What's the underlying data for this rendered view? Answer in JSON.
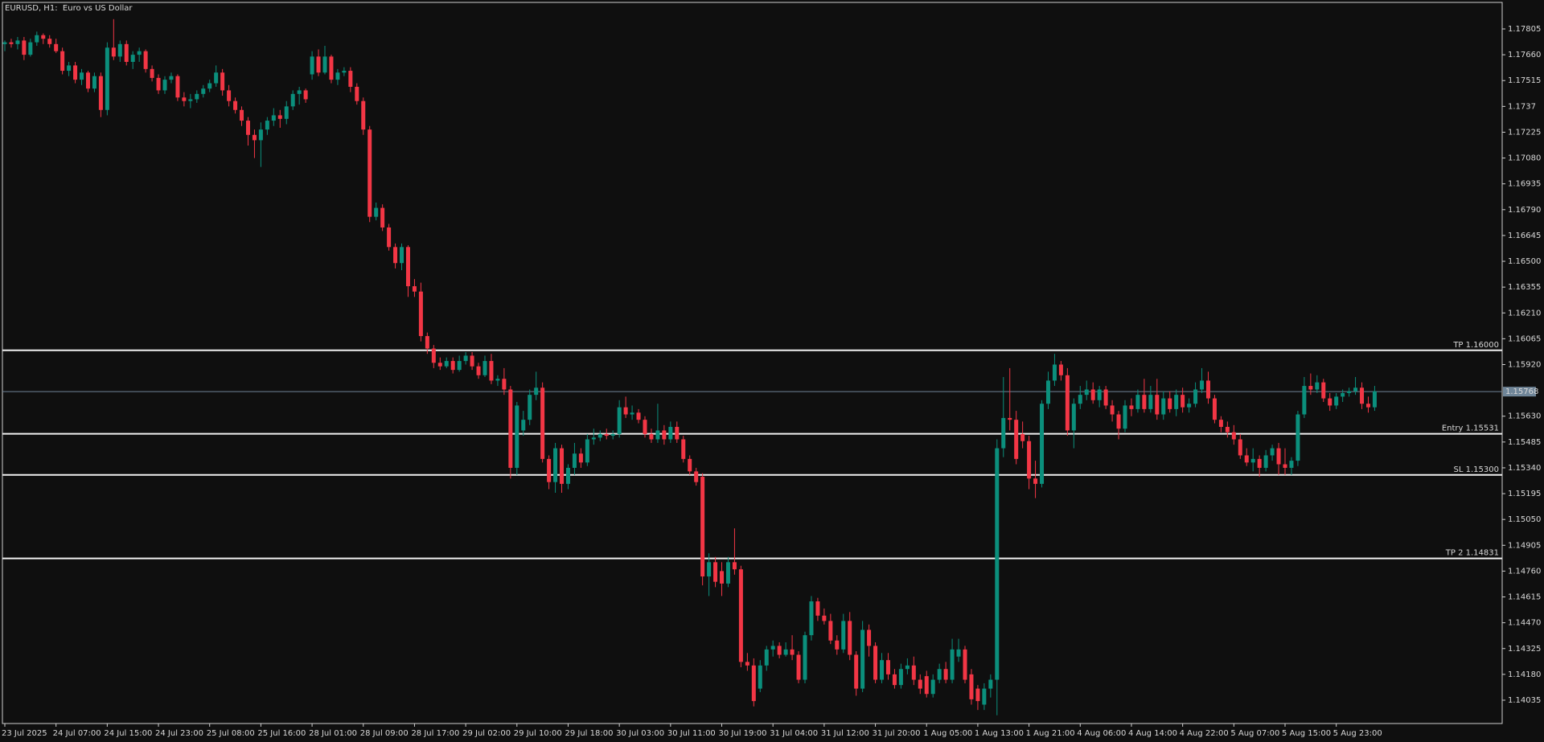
{
  "chart_data": {
    "type": "candlestick",
    "title": "EURUSD, H1:  Euro vs US Dollar",
    "up_color": "#0b8f7c",
    "down_color": "#f23645",
    "categories": [
      "23 Jul 2025",
      null,
      null,
      null,
      null,
      null,
      null,
      null,
      "24 Jul 07:00",
      null,
      null,
      null,
      null,
      null,
      null,
      null,
      "24 Jul 15:00",
      null,
      null,
      null,
      null,
      null,
      null,
      null,
      "24 Jul 23:00",
      null,
      null,
      null,
      null,
      null,
      null,
      null,
      "25 Jul 08:00",
      null,
      null,
      null,
      null,
      null,
      null,
      null,
      "25 Jul 16:00",
      null,
      null,
      null,
      null,
      null,
      null,
      null,
      "28 Jul 01:00",
      null,
      null,
      null,
      null,
      null,
      null,
      null,
      "28 Jul 09:00",
      null,
      null,
      null,
      null,
      null,
      null,
      null,
      "28 Jul 17:00",
      null,
      null,
      null,
      null,
      null,
      null,
      null,
      "29 Jul 02:00",
      null,
      null,
      null,
      null,
      null,
      null,
      null,
      "29 Jul 10:00",
      null,
      null,
      null,
      null,
      null,
      null,
      null,
      "29 Jul 18:00",
      null,
      null,
      null,
      null,
      null,
      null,
      null,
      "30 Jul 03:00",
      null,
      null,
      null,
      null,
      null,
      null,
      null,
      "30 Jul 11:00",
      null,
      null,
      null,
      null,
      null,
      null,
      null,
      "30 Jul 19:00",
      null,
      null,
      null,
      null,
      null,
      null,
      null,
      "31 Jul 04:00",
      null,
      null,
      null,
      null,
      null,
      null,
      null,
      "31 Jul 12:00",
      null,
      null,
      null,
      null,
      null,
      null,
      null,
      "31 Jul 20:00",
      null,
      null,
      null,
      null,
      null,
      null,
      null,
      "1 Aug 05:00",
      null,
      null,
      null,
      null,
      null,
      null,
      null,
      "1 Aug 13:00",
      null,
      null,
      null,
      null,
      null,
      null,
      null,
      "1 Aug 21:00",
      null,
      null,
      null,
      null,
      null,
      null,
      null,
      "4 Aug 06:00",
      null,
      null,
      null,
      null,
      null,
      null,
      null,
      "4 Aug 14:00",
      null,
      null,
      null,
      null,
      null,
      null,
      null,
      "4 Aug 22:00",
      null,
      null,
      null,
      null,
      null,
      null,
      null,
      "5 Aug 07:00",
      null,
      null,
      null,
      null,
      null,
      null,
      null,
      "5 Aug 15:00",
      null,
      null,
      null,
      null,
      null,
      null,
      null,
      "5 Aug 23:00",
      null,
      null,
      null,
      null,
      null,
      null
    ],
    "open": [
      1.1772,
      1.1773,
      1.1772,
      1.1774,
      1.1766,
      1.1773,
      1.1777,
      1.1775,
      1.1772,
      1.1768,
      1.1757,
      1.176,
      1.1752,
      1.1756,
      1.1747,
      1.1754,
      1.1735,
      1.177,
      1.1765,
      1.1772,
      1.1762,
      1.1766,
      1.1768,
      1.1758,
      1.1753,
      1.1746,
      1.1752,
      1.1754,
      1.1742,
      1.174,
      1.1741,
      1.1744,
      1.1747,
      1.175,
      1.1756,
      1.1746,
      1.174,
      1.1735,
      1.1729,
      1.1721,
      1.1718,
      1.1724,
      1.1729,
      1.1732,
      1.173,
      1.1737,
      1.1744,
      1.1746,
      1.1755,
      1.1765,
      1.1756,
      1.1765,
      1.1752,
      1.1756,
      1.1757,
      1.1748,
      1.174,
      1.1724,
      1.1675,
      1.168,
      1.1669,
      1.1658,
      1.1649,
      1.1658,
      1.1636,
      1.1633,
      1.1608,
      1.1601,
      1.1593,
      1.1591,
      1.1594,
      1.1589,
      1.1594,
      1.1597,
      1.1591,
      1.1586,
      1.1594,
      1.1583,
      1.1584,
      1.1578,
      1.1534,
      1.1555,
      1.1561,
      1.1575,
      1.1579,
      1.1539,
      1.1526,
      1.1545,
      1.1525,
      1.1534,
      1.1542,
      1.1537,
      1.155,
      1.1551,
      1.1553,
      1.1552,
      1.1553,
      1.1568,
      1.1564,
      1.1565,
      1.1561,
      1.1553,
      1.155,
      1.1555,
      1.155,
      1.1557,
      1.155,
      1.1539,
      1.1532,
      1.1529,
      1.1473,
      1.1481,
      1.1476,
      1.1469,
      1.1481,
      1.1477,
      1.1425,
      1.1423,
      1.141,
      1.1423,
      1.1432,
      1.1434,
      1.1429,
      1.1432,
      1.1429,
      1.1415,
      1.144,
      1.1459,
      1.1451,
      1.1448,
      1.1437,
      1.1432,
      1.1448,
      1.1429,
      1.141,
      1.1443,
      1.1434,
      1.1415,
      1.1426,
      1.1418,
      1.1412,
      1.1421,
      1.1423,
      1.1415,
      1.1417,
      1.1407,
      1.1415,
      1.1421,
      1.1415,
      1.1428,
      1.1432,
      1.1418,
      1.141,
      1.1401,
      1.141,
      1.1415,
      1.1545,
      1.1562,
      1.1561,
      1.1553,
      1.1549,
      1.1528,
      1.1525,
      1.157,
      1.1583,
      1.1592,
      1.1586,
      1.1555,
      1.157,
      1.1575,
      1.1578,
      1.1572,
      1.1578,
      1.1569,
      1.1564,
      1.1556,
      1.1569,
      1.1567,
      1.1575,
      1.1567,
      1.1575,
      1.1564,
      1.1573,
      1.1567,
      1.1575,
      1.1568,
      1.157,
      1.1578,
      1.1583,
      1.1573,
      1.1561,
      1.1557,
      1.1554,
      1.155,
      1.1541,
      1.1537,
      1.1539,
      1.1534,
      1.1541,
      1.1545,
      1.1536,
      1.1534,
      1.1538,
      1.1564,
      1.158,
      1.1578,
      1.1582,
      1.1573,
      1.1569,
      1.1574,
      1.1576,
      1.1577,
      1.1579,
      1.157,
      1.1568
    ],
    "high": [
      1.1774,
      1.1775,
      1.1776,
      1.1776,
      1.1775,
      1.1779,
      1.1778,
      1.1777,
      1.1775,
      1.177,
      1.1762,
      1.1762,
      1.1758,
      1.1757,
      1.1756,
      1.1756,
      1.1773,
      1.1786,
      1.1774,
      1.1774,
      1.1768,
      1.177,
      1.1769,
      1.176,
      1.1755,
      1.1754,
      1.1756,
      1.1755,
      1.1745,
      1.1744,
      1.1746,
      1.1749,
      1.1752,
      1.176,
      1.1758,
      1.1749,
      1.1742,
      1.1737,
      1.1731,
      1.1724,
      1.1728,
      1.1731,
      1.1736,
      1.1735,
      1.174,
      1.1746,
      1.1748,
      1.1747,
      1.1768,
      1.1769,
      1.1771,
      1.1766,
      1.1758,
      1.1759,
      1.1759,
      1.175,
      1.1742,
      1.1726,
      1.1683,
      1.1682,
      1.1671,
      1.166,
      1.166,
      1.1659,
      1.164,
      1.1638,
      1.161,
      1.1603,
      1.1596,
      1.1596,
      1.1596,
      1.1597,
      1.1599,
      1.1599,
      1.1593,
      1.1597,
      1.1598,
      1.1586,
      1.159,
      1.158,
      1.1571,
      1.1566,
      1.1578,
      1.1588,
      1.1582,
      1.1541,
      1.1548,
      1.1547,
      1.1536,
      1.1548,
      1.1545,
      1.1553,
      1.1556,
      1.1555,
      1.1556,
      1.1555,
      1.1572,
      1.1574,
      1.1569,
      1.1567,
      1.1563,
      1.1556,
      1.157,
      1.1558,
      1.156,
      1.156,
      1.1552,
      1.1541,
      1.1534,
      1.1531,
      1.1486,
      1.1484,
      1.1481,
      1.1484,
      1.15,
      1.1479,
      1.143,
      1.1427,
      1.1426,
      1.1434,
      1.1437,
      1.1436,
      1.1436,
      1.144,
      1.1431,
      1.1442,
      1.1462,
      1.1461,
      1.1455,
      1.1452,
      1.144,
      1.1452,
      1.1453,
      1.1431,
      1.1448,
      1.1446,
      1.1436,
      1.143,
      1.143,
      1.1421,
      1.1424,
      1.1427,
      1.1428,
      1.1418,
      1.142,
      1.1418,
      1.1424,
      1.1425,
      1.1438,
      1.1438,
      1.1434,
      1.1421,
      1.1412,
      1.1413,
      1.1418,
      1.155,
      1.1585,
      1.159,
      1.1566,
      1.156,
      1.1552,
      1.1538,
      1.1572,
      1.1588,
      1.1598,
      1.1594,
      1.159,
      1.1573,
      1.158,
      1.1583,
      1.1582,
      1.158,
      1.158,
      1.1572,
      1.1566,
      1.1572,
      1.1573,
      1.1578,
      1.1584,
      1.158,
      1.1584,
      1.1577,
      1.1577,
      1.1578,
      1.1579,
      1.1573,
      1.1582,
      1.159,
      1.1588,
      1.1575,
      1.1563,
      1.156,
      1.1558,
      1.1553,
      1.1545,
      1.1545,
      1.1541,
      1.1544,
      1.1547,
      1.1548,
      1.1545,
      1.154,
      1.1566,
      1.1585,
      1.1587,
      1.1586,
      1.1584,
      1.1576,
      1.1576,
      1.1578,
      1.1579,
      1.1585,
      1.1582,
      1.1574,
      1.158
    ],
    "low": [
      1.1768,
      1.177,
      1.1769,
      1.1763,
      1.1765,
      1.1771,
      1.1772,
      1.177,
      1.1767,
      1.1755,
      1.1754,
      1.175,
      1.1749,
      1.1745,
      1.1745,
      1.1731,
      1.1732,
      1.1763,
      1.1762,
      1.176,
      1.1758,
      1.1762,
      1.1756,
      1.1751,
      1.1744,
      1.1744,
      1.175,
      1.174,
      1.1737,
      1.1736,
      1.1739,
      1.1742,
      1.1745,
      1.1748,
      1.1743,
      1.1737,
      1.1733,
      1.1726,
      1.1715,
      1.1708,
      1.1703,
      1.1721,
      1.1726,
      1.1725,
      1.1727,
      1.1735,
      1.1738,
      1.1739,
      1.1752,
      1.1754,
      1.1755,
      1.175,
      1.1749,
      1.1754,
      1.1745,
      1.1738,
      1.1721,
      1.1672,
      1.1673,
      1.1667,
      1.1656,
      1.1646,
      1.1645,
      1.163,
      1.163,
      1.1605,
      1.1598,
      1.159,
      1.1589,
      1.159,
      1.1587,
      1.1588,
      1.1592,
      1.1589,
      1.1584,
      1.1585,
      1.1581,
      1.158,
      1.1575,
      1.1528,
      1.153,
      1.1552,
      1.1558,
      1.1572,
      1.1537,
      1.1522,
      1.152,
      1.152,
      1.1522,
      1.153,
      1.1534,
      1.1535,
      1.1547,
      1.1549,
      1.155,
      1.155,
      1.1551,
      1.1562,
      1.1561,
      1.1559,
      1.1551,
      1.1548,
      1.1548,
      1.1547,
      1.1548,
      1.1548,
      1.1537,
      1.153,
      1.1524,
      1.1468,
      1.1462,
      1.1467,
      1.1462,
      1.1467,
      1.1474,
      1.1422,
      1.142,
      1.14,
      1.1408,
      1.142,
      1.1428,
      1.1427,
      1.1428,
      1.1426,
      1.1413,
      1.1413,
      1.1437,
      1.1448,
      1.1446,
      1.1435,
      1.1429,
      1.143,
      1.1426,
      1.1406,
      1.1408,
      1.1428,
      1.1413,
      1.1413,
      1.1415,
      1.141,
      1.141,
      1.1418,
      1.1412,
      1.1407,
      1.1405,
      1.1405,
      1.1413,
      1.1413,
      1.1413,
      1.1425,
      1.1413,
      1.1401,
      1.1398,
      1.1398,
      1.1405,
      1.1395,
      1.154,
      1.1555,
      1.1536,
      1.1545,
      1.1522,
      1.1517,
      1.1523,
      1.1567,
      1.158,
      1.1583,
      1.1552,
      1.1545,
      1.1567,
      1.1572,
      1.157,
      1.1568,
      1.1567,
      1.156,
      1.155,
      1.1554,
      1.1563,
      1.1565,
      1.1565,
      1.1565,
      1.1561,
      1.1561,
      1.1565,
      1.1563,
      1.1565,
      1.1565,
      1.1568,
      1.1576,
      1.157,
      1.1559,
      1.1554,
      1.1551,
      1.1547,
      1.1539,
      1.1535,
      1.1532,
      1.1529,
      1.1532,
      1.1538,
      1.153,
      1.153,
      1.153,
      1.1535,
      1.1562,
      1.1575,
      1.1576,
      1.1571,
      1.1566,
      1.1567,
      1.1571,
      1.1574,
      1.1575,
      1.1567,
      1.1565,
      1.1566
    ],
    "close": [
      1.1773,
      1.1772,
      1.1774,
      1.1766,
      1.1773,
      1.1777,
      1.1775,
      1.1772,
      1.1768,
      1.1757,
      1.176,
      1.1752,
      1.1756,
      1.1747,
      1.1754,
      1.1735,
      1.177,
      1.1765,
      1.1772,
      1.1762,
      1.1766,
      1.1768,
      1.1758,
      1.1753,
      1.1746,
      1.1752,
      1.1754,
      1.1742,
      1.174,
      1.1741,
      1.1744,
      1.1747,
      1.175,
      1.1756,
      1.1746,
      1.174,
      1.1735,
      1.1729,
      1.1721,
      1.1718,
      1.1724,
      1.1729,
      1.1732,
      1.173,
      1.1737,
      1.1744,
      1.1746,
      1.1741,
      1.1765,
      1.1756,
      1.1765,
      1.1752,
      1.1756,
      1.1757,
      1.1748,
      1.174,
      1.1724,
      1.1675,
      1.168,
      1.1669,
      1.1658,
      1.1649,
      1.1658,
      1.1636,
      1.1633,
      1.1608,
      1.1601,
      1.1593,
      1.1591,
      1.1594,
      1.1589,
      1.1594,
      1.1597,
      1.1591,
      1.1586,
      1.1594,
      1.1583,
      1.1584,
      1.1578,
      1.1534,
      1.1569,
      1.1561,
      1.1575,
      1.1579,
      1.1539,
      1.1526,
      1.1545,
      1.1525,
      1.1534,
      1.1542,
      1.1537,
      1.155,
      1.1551,
      1.1553,
      1.1552,
      1.1553,
      1.1568,
      1.1564,
      1.1565,
      1.1561,
      1.1553,
      1.155,
      1.1555,
      1.155,
      1.1557,
      1.155,
      1.1539,
      1.1532,
      1.1526,
      1.1473,
      1.1481,
      1.147,
      1.1469,
      1.1481,
      1.1477,
      1.1425,
      1.1423,
      1.1403,
      1.1423,
      1.1432,
      1.1434,
      1.1429,
      1.1432,
      1.1429,
      1.1415,
      1.144,
      1.1459,
      1.1451,
      1.1448,
      1.1437,
      1.1432,
      1.1448,
      1.1429,
      1.141,
      1.1443,
      1.1434,
      1.1415,
      1.1426,
      1.1418,
      1.1412,
      1.1421,
      1.1423,
      1.1415,
      1.141,
      1.1407,
      1.1415,
      1.1421,
      1.1415,
      1.1432,
      1.1432,
      1.1415,
      1.1404,
      1.1403,
      1.141,
      1.1415,
      1.1545,
      1.1562,
      1.1561,
      1.1539,
      1.1549,
      1.1528,
      1.1525,
      1.157,
      1.1583,
      1.1592,
      1.1586,
      1.1555,
      1.157,
      1.1575,
      1.1578,
      1.1572,
      1.1578,
      1.1569,
      1.1564,
      1.1556,
      1.1569,
      1.1567,
      1.1575,
      1.1567,
      1.1575,
      1.1564,
      1.1573,
      1.1567,
      1.1575,
      1.1568,
      1.157,
      1.1578,
      1.1583,
      1.1573,
      1.1561,
      1.1557,
      1.1554,
      1.155,
      1.1541,
      1.1537,
      1.1539,
      1.1534,
      1.1541,
      1.1545,
      1.1536,
      1.1534,
      1.1538,
      1.1564,
      1.158,
      1.1578,
      1.1582,
      1.1573,
      1.1569,
      1.1574,
      1.1576,
      1.1577,
      1.1579,
      1.157,
      1.1568,
      1.1577
    ],
    "ylim": [
      1.13904,
      1.17954
    ],
    "yticks": [
      1.17805,
      {
        "value": 1.1766,
        "label": "1.17660"
      },
      1.17515,
      1.1737,
      1.17225,
      {
        "value": 1.1708,
        "label": "1.17080"
      },
      1.16935,
      {
        "value": 1.1679,
        "label": "1.16790"
      },
      1.16645,
      {
        "value": 1.165,
        "label": "1.16500"
      },
      1.16355,
      {
        "value": 1.1621,
        "label": "1.16210"
      },
      1.16065,
      {
        "value": 1.1592,
        "label": "1.15920"
      },
      {
        "value": 1.1563,
        "label": "1.15630"
      },
      1.15485,
      {
        "value": 1.1534,
        "label": "1.15340"
      },
      1.15195,
      {
        "value": 1.1505,
        "label": "1.15050"
      },
      1.14905,
      {
        "value": 1.1476,
        "label": "1.14760"
      },
      1.14615,
      {
        "value": 1.1447,
        "label": "1.14470"
      },
      1.14325,
      {
        "value": 1.1418,
        "label": "1.14180"
      },
      1.14035
    ],
    "current_price": 1.15768,
    "levels": [
      {
        "label": "TP 1.16000",
        "value": 1.16
      },
      {
        "label": "Entry 1.15531",
        "value": 1.15531
      },
      {
        "label": "SL 1.15300",
        "value": 1.153
      },
      {
        "label": "TP 2 1.14831",
        "value": 1.14831
      }
    ],
    "grid": false
  }
}
